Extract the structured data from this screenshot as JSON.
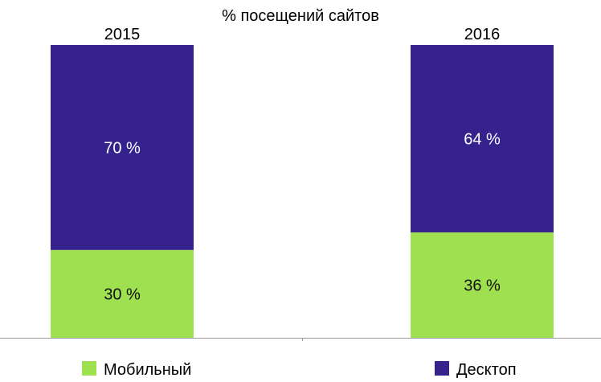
{
  "chart_data": {
    "type": "bar",
    "stacked": true,
    "title": "% посещений сайтов",
    "categories": [
      "2015",
      "2016"
    ],
    "series": [
      {
        "name": "Мобильный",
        "values": [
          30,
          36
        ],
        "labels": [
          "30 %",
          "36 %"
        ],
        "color": "#9ee04f"
      },
      {
        "name": "Десктоп",
        "values": [
          70,
          64
        ],
        "labels": [
          "70 %",
          "64 %"
        ],
        "color": "#35228c"
      }
    ],
    "ylim": [
      0,
      100
    ],
    "grid": false,
    "legend": "bottom"
  }
}
